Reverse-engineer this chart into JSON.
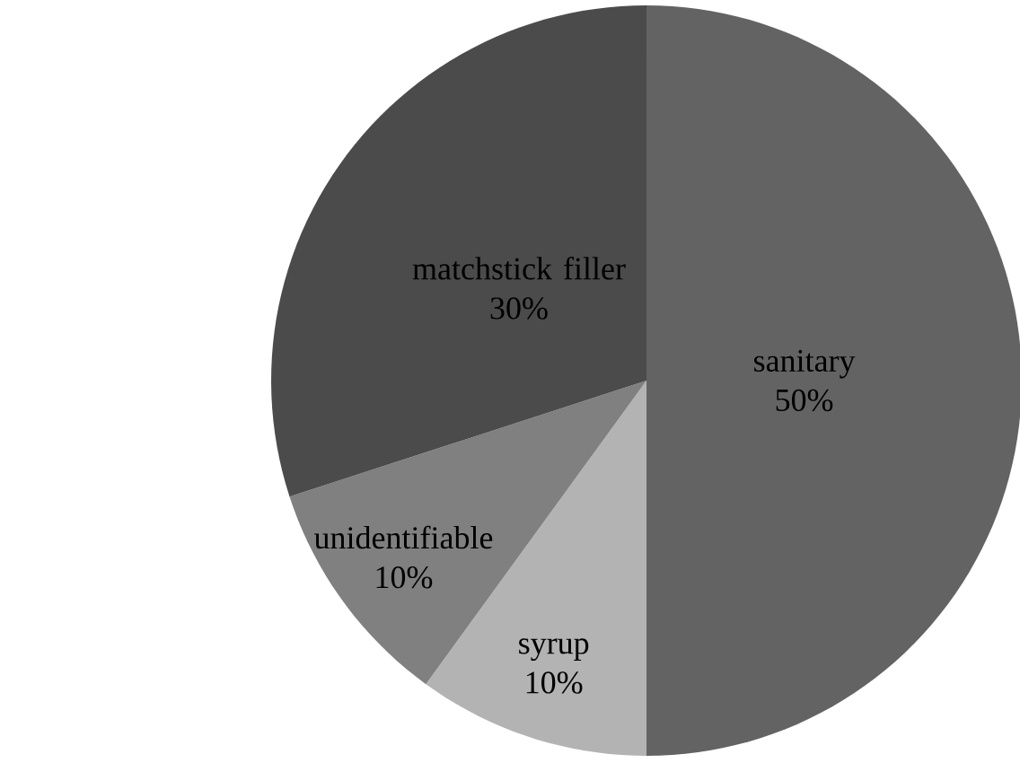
{
  "chart_data": {
    "type": "pie",
    "categories": [
      "sanitary",
      "syrup",
      "unidentifiable",
      "matchstick filler"
    ],
    "values": [
      50,
      10,
      10,
      30
    ],
    "value_labels": [
      "50%",
      "10%",
      "10%",
      "30%"
    ],
    "colors": [
      "#636363",
      "#b3b3b3",
      "#808080",
      "#4b4b4b"
    ]
  }
}
